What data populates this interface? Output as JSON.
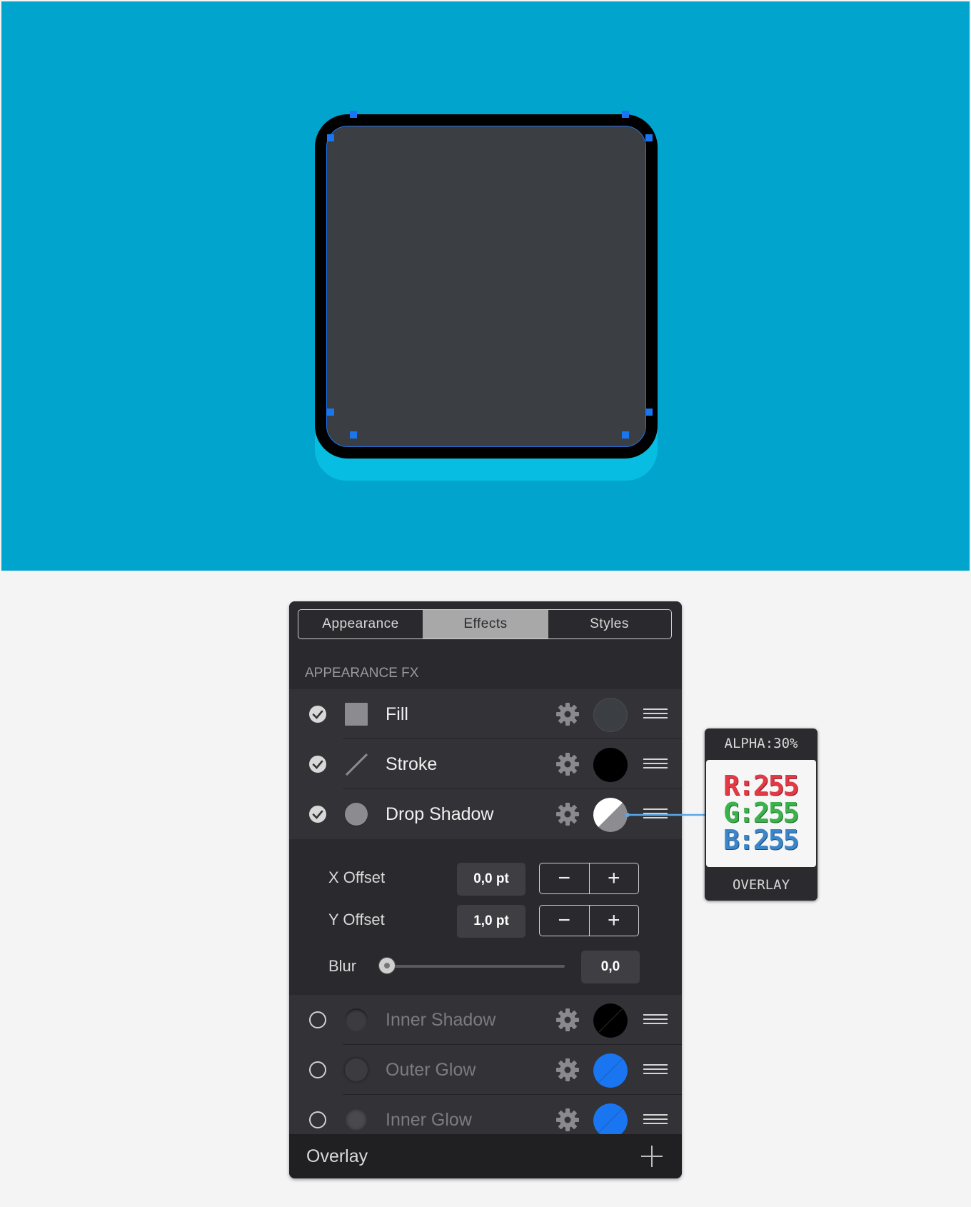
{
  "tabs": [
    {
      "label": "Appearance",
      "active": false
    },
    {
      "label": "Effects",
      "active": true
    },
    {
      "label": "Styles",
      "active": false
    }
  ],
  "section_title": "APPEARANCE FX",
  "effects": [
    {
      "label": "Fill",
      "enabled": true,
      "swatch": "#3b3e42",
      "icon": "square-fill-icon"
    },
    {
      "label": "Stroke",
      "enabled": true,
      "swatch": "#000000",
      "icon": "line-stroke-icon"
    },
    {
      "label": "Drop Shadow",
      "enabled": true,
      "swatch": "white-30-alpha",
      "icon": "circle-shadow-icon"
    },
    {
      "label": "Inner Shadow",
      "enabled": false,
      "swatch": "#000000",
      "icon": "circle-icon"
    },
    {
      "label": "Outer Glow",
      "enabled": false,
      "swatch": "#1a76f0",
      "icon": "circle-icon"
    },
    {
      "label": "Inner Glow",
      "enabled": false,
      "swatch": "#1a76f0",
      "icon": "circle-icon"
    }
  ],
  "drop_shadow": {
    "x_offset_label": "X Offset",
    "x_offset_value": "0,0 pt",
    "y_offset_label": "Y Offset",
    "y_offset_value": "1,0 pt",
    "blur_label": "Blur",
    "blur_value": "0,0",
    "blur_fraction": 0
  },
  "footer": {
    "label": "Overlay"
  },
  "tooltip": {
    "alpha": "ALPHA:30%",
    "r": "R:255",
    "g": "G:255",
    "b": "B:255",
    "mode": "OVERLAY"
  },
  "colors": {
    "canvas": "#00a4cd",
    "shape_fill": "#3b3e42",
    "shape_stroke": "#000000",
    "shape_shadow": "#07bde1",
    "selection": "#1a76f0"
  }
}
